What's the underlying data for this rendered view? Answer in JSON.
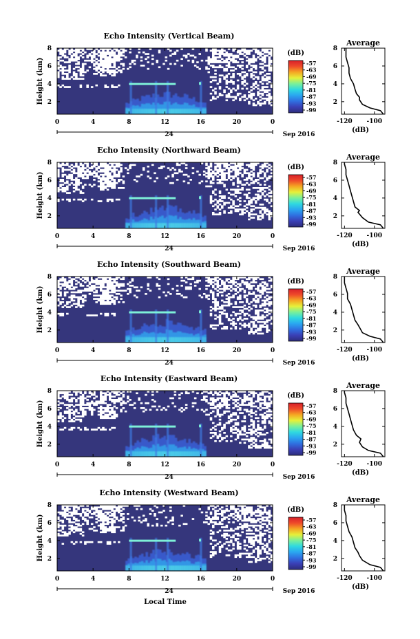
{
  "figure": {
    "xlabel_bottom": "Local Time",
    "date_label": "Sep 2016",
    "day_marker": "24"
  },
  "colorbar": {
    "unit": "(dB)",
    "ticks": [
      "-57",
      "-63",
      "-69",
      "-75",
      "-81",
      "-87",
      "-93",
      "-99"
    ],
    "colors": [
      "#2d2d7a",
      "#3a3fb5",
      "#2f6fe0",
      "#2aa6f0",
      "#2fd9e0",
      "#7af09a",
      "#e6f03a",
      "#f5a623",
      "#ef4a2a",
      "#d8202a"
    ]
  },
  "chart_data": [
    {
      "type": "heatmap",
      "title": "Echo Intensity (Vertical Beam)",
      "ylabel": "Height (km)",
      "xlim": [
        0,
        24
      ],
      "ylim": [
        0.6,
        8
      ],
      "xticks": [
        "0",
        "4",
        "8",
        "12",
        "16",
        "20",
        "0"
      ],
      "yticks": [
        "2",
        "4",
        "6",
        "8"
      ],
      "avg": {
        "title": "Average",
        "xlabel": "(dB)",
        "xticks": [
          "-120",
          "-100"
        ],
        "xlim": [
          -122,
          -93
        ],
        "profile": [
          [
            -94,
            0.6
          ],
          [
            -96,
            1.0
          ],
          [
            -103,
            1.3
          ],
          [
            -108,
            1.7
          ],
          [
            -110,
            2.2
          ],
          [
            -110,
            2.5
          ],
          [
            -112,
            2.9
          ],
          [
            -113,
            3.4
          ],
          [
            -114,
            4.0
          ],
          [
            -116,
            4.6
          ],
          [
            -117,
            5.2
          ],
          [
            -117,
            5.8
          ],
          [
            -118,
            6.4
          ],
          [
            -119,
            7.0
          ],
          [
            -119,
            7.6
          ],
          [
            -119,
            8.0
          ]
        ]
      }
    },
    {
      "type": "heatmap",
      "title": "Echo Intensity (Northward Beam)",
      "ylabel": "Height (km)",
      "xlim": [
        0,
        24
      ],
      "ylim": [
        0.6,
        8
      ],
      "xticks": [
        "0",
        "4",
        "8",
        "12",
        "16",
        "20",
        "0"
      ],
      "yticks": [
        "2",
        "4",
        "6",
        "8"
      ],
      "avg": {
        "title": "Average",
        "xlabel": "(dB)",
        "xticks": [
          "-120",
          "-100"
        ],
        "xlim": [
          -122,
          -93
        ],
        "profile": [
          [
            -94,
            0.6
          ],
          [
            -96,
            1.0
          ],
          [
            -104,
            1.3
          ],
          [
            -108,
            1.8
          ],
          [
            -111,
            2.4
          ],
          [
            -110,
            2.6
          ],
          [
            -113,
            3.0
          ],
          [
            -114,
            3.6
          ],
          [
            -115,
            4.2
          ],
          [
            -116,
            4.8
          ],
          [
            -117,
            5.4
          ],
          [
            -118,
            6.0
          ],
          [
            -119,
            6.6
          ],
          [
            -119,
            7.2
          ],
          [
            -120,
            7.8
          ],
          [
            -120,
            8.0
          ]
        ]
      }
    },
    {
      "type": "heatmap",
      "title": "Echo Intensity (Southward Beam)",
      "ylabel": "Height (km)",
      "xlim": [
        0,
        24
      ],
      "ylim": [
        0.6,
        8
      ],
      "xticks": [
        "0",
        "4",
        "8",
        "12",
        "16",
        "20",
        "0"
      ],
      "yticks": [
        "2",
        "4",
        "6",
        "8"
      ],
      "avg": {
        "title": "Average",
        "xlabel": "(dB)",
        "xticks": [
          "-120",
          "-100"
        ],
        "xlim": [
          -122,
          -93
        ],
        "profile": [
          [
            -94,
            0.6
          ],
          [
            -96,
            1.0
          ],
          [
            -103,
            1.3
          ],
          [
            -108,
            1.7
          ],
          [
            -110,
            2.3
          ],
          [
            -111,
            2.6
          ],
          [
            -113,
            3.1
          ],
          [
            -114,
            3.7
          ],
          [
            -115,
            4.3
          ],
          [
            -116,
            4.9
          ],
          [
            -118,
            5.5
          ],
          [
            -118,
            6.1
          ],
          [
            -119,
            6.7
          ],
          [
            -120,
            7.3
          ],
          [
            -120,
            7.9
          ],
          [
            -120,
            8.0
          ]
        ]
      }
    },
    {
      "type": "heatmap",
      "title": "Echo Intensity (Eastward Beam)",
      "ylabel": "Height (km)",
      "xlim": [
        0,
        24
      ],
      "ylim": [
        0.6,
        8
      ],
      "xticks": [
        "0",
        "4",
        "8",
        "12",
        "16",
        "20",
        "0"
      ],
      "yticks": [
        "2",
        "4",
        "6",
        "8"
      ],
      "avg": {
        "title": "Average",
        "xlabel": "(dB)",
        "xticks": [
          "-120",
          "-100"
        ],
        "xlim": [
          -122,
          -93
        ],
        "profile": [
          [
            -94,
            0.6
          ],
          [
            -96,
            1.0
          ],
          [
            -104,
            1.3
          ],
          [
            -108,
            1.7
          ],
          [
            -110,
            2.2
          ],
          [
            -109,
            2.6
          ],
          [
            -112,
            3.0
          ],
          [
            -114,
            3.6
          ],
          [
            -115,
            4.2
          ],
          [
            -116,
            4.8
          ],
          [
            -117,
            5.4
          ],
          [
            -118,
            6.0
          ],
          [
            -119,
            6.6
          ],
          [
            -119,
            7.2
          ],
          [
            -120,
            7.8
          ],
          [
            -120,
            8.0
          ]
        ]
      }
    },
    {
      "type": "heatmap",
      "title": "Echo Intensity (Westward Beam)",
      "ylabel": "Height (km)",
      "xlim": [
        0,
        24
      ],
      "ylim": [
        0.6,
        8
      ],
      "xticks": [
        "0",
        "4",
        "8",
        "12",
        "16",
        "20",
        "0"
      ],
      "yticks": [
        "2",
        "4",
        "6",
        "8"
      ],
      "avg": {
        "title": "Average",
        "xlabel": "(dB)",
        "xticks": [
          "-120",
          "-100"
        ],
        "xlim": [
          -122,
          -93
        ],
        "profile": [
          [
            -94,
            0.6
          ],
          [
            -96,
            1.0
          ],
          [
            -103,
            1.3
          ],
          [
            -108,
            1.8
          ],
          [
            -110,
            2.3
          ],
          [
            -111,
            2.7
          ],
          [
            -113,
            3.2
          ],
          [
            -114,
            3.8
          ],
          [
            -115,
            4.4
          ],
          [
            -117,
            5.0
          ],
          [
            -118,
            5.6
          ],
          [
            -119,
            6.2
          ],
          [
            -119,
            6.8
          ],
          [
            -120,
            7.4
          ],
          [
            -120,
            8.0
          ]
        ]
      }
    }
  ]
}
